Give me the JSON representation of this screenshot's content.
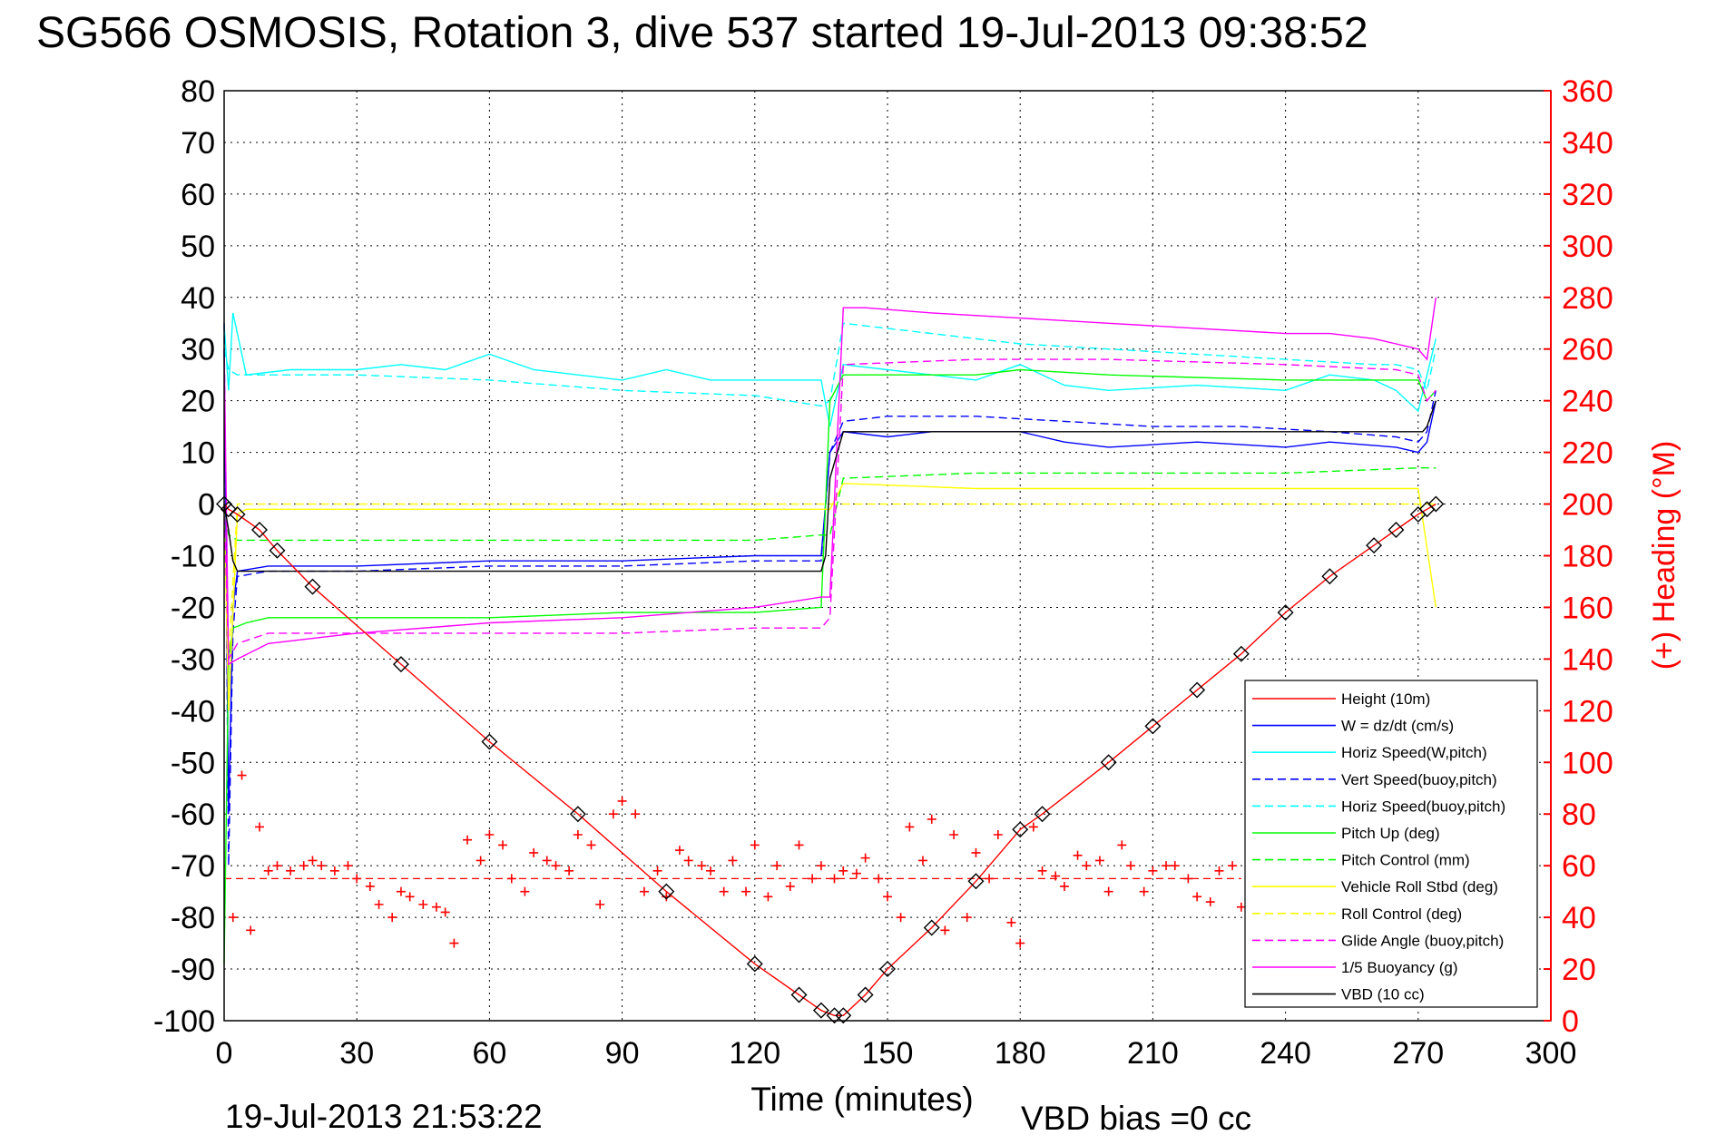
{
  "title": "SG566 OSMOSIS, Rotation 3, dive 537 started 19-Jul-2013 09:38:52",
  "footer": {
    "timestamp": "19-Jul-2013 21:53:22",
    "xlabel": "Time (minutes)",
    "vbd_bias": "VBD bias =0 cc"
  },
  "chart_data": {
    "type": "line",
    "title": "SG566 OSMOSIS, Rotation 3, dive 537 started 19-Jul-2013 09:38:52",
    "xlabel": "Time (minutes)",
    "ylabel": "",
    "y2label": "(+) Heading (°M)",
    "xlim": [
      0,
      300
    ],
    "ylim": [
      -100,
      80
    ],
    "y2lim": [
      0,
      360
    ],
    "xticks": [
      "0",
      "30",
      "60",
      "90",
      "120",
      "150",
      "180",
      "210",
      "240",
      "270",
      "300"
    ],
    "yticks": [
      "80",
      "70",
      "60",
      "50",
      "40",
      "30",
      "20",
      "10",
      "0",
      "-10",
      "-20",
      "-30",
      "-40",
      "-50",
      "-60",
      "-70",
      "-80",
      "-90",
      "-100"
    ],
    "y2ticks": [
      "360",
      "340",
      "320",
      "300",
      "280",
      "260",
      "240",
      "220",
      "200",
      "180",
      "160",
      "140",
      "120",
      "100",
      "80",
      "60",
      "40",
      "20",
      "0"
    ],
    "grid": true,
    "legend_position": "bottom-right",
    "series": [
      {
        "name": "Height (10m)",
        "color": "#ff0000",
        "style": "solid",
        "marker": "diamond",
        "x": [
          0,
          1,
          3,
          8,
          12,
          20,
          40,
          60,
          80,
          100,
          120,
          130,
          135,
          138,
          140,
          145,
          150,
          160,
          170,
          180,
          185,
          200,
          210,
          220,
          230,
          240,
          250,
          260,
          265,
          270,
          272,
          274
        ],
        "y": [
          0,
          -1,
          -2,
          -5,
          -9,
          -16,
          -31,
          -46,
          -60,
          -75,
          -89,
          -95,
          -98,
          -99,
          -99,
          -95,
          -90,
          -82,
          -73,
          -63,
          -60,
          -50,
          -43,
          -36,
          -29,
          -21,
          -14,
          -8,
          -5,
          -2,
          -1,
          0
        ]
      },
      {
        "name": "W = dz/dt (cm/s)",
        "color": "#0000ff",
        "style": "solid",
        "x": [
          0,
          1,
          2,
          3,
          10,
          30,
          60,
          90,
          120,
          135,
          137,
          140,
          150,
          160,
          180,
          190,
          200,
          220,
          240,
          250,
          265,
          270,
          272,
          274
        ],
        "y": [
          30,
          -60,
          -20,
          -13,
          -12,
          -12,
          -11,
          -11,
          -10,
          -10,
          10,
          14,
          13,
          14,
          14,
          12,
          11,
          12,
          11,
          12,
          11,
          10,
          12,
          20
        ]
      },
      {
        "name": "Horiz Speed(W,pitch)",
        "color": "#00ffff",
        "style": "solid",
        "x": [
          0,
          1,
          2,
          5,
          15,
          30,
          40,
          50,
          60,
          70,
          80,
          90,
          100,
          110,
          120,
          135,
          137,
          140,
          150,
          160,
          170,
          180,
          190,
          200,
          220,
          240,
          250,
          260,
          265,
          270,
          274
        ],
        "y": [
          35,
          22,
          37,
          25,
          26,
          26,
          27,
          26,
          29,
          26,
          25,
          24,
          26,
          24,
          24,
          24,
          15,
          27,
          26,
          25,
          24,
          27,
          23,
          22,
          23,
          22,
          25,
          24,
          22,
          18,
          32
        ]
      },
      {
        "name": "Vert Speed(buoy,pitch)",
        "color": "#0000ff",
        "style": "dashed",
        "x": [
          0,
          1,
          2,
          3,
          10,
          30,
          60,
          90,
          120,
          135,
          137,
          140,
          150,
          170,
          190,
          210,
          230,
          250,
          265,
          270,
          272,
          274
        ],
        "y": [
          35,
          -70,
          -25,
          -14,
          -13,
          -13,
          -12,
          -12,
          -11,
          -11,
          10,
          16,
          17,
          17,
          16,
          15,
          15,
          14,
          13,
          12,
          14,
          22
        ]
      },
      {
        "name": "Horiz Speed(buoy,pitch)",
        "color": "#00ffff",
        "style": "dashed",
        "x": [
          0,
          1,
          3,
          10,
          30,
          60,
          90,
          120,
          135,
          137,
          140,
          160,
          180,
          200,
          220,
          240,
          260,
          265,
          270,
          272,
          274
        ],
        "y": [
          30,
          26,
          25,
          25,
          25,
          24,
          22,
          21,
          19,
          20,
          35,
          33,
          31,
          30,
          29,
          28,
          27,
          27,
          26,
          22,
          30
        ]
      },
      {
        "name": "Pitch Up (deg)",
        "color": "#00ff00",
        "style": "solid",
        "x": [
          0,
          1,
          2,
          5,
          10,
          30,
          60,
          90,
          120,
          135,
          137,
          140,
          150,
          170,
          180,
          200,
          240,
          260,
          270,
          272,
          274
        ],
        "y": [
          -89,
          -30,
          -24,
          -23,
          -22,
          -22,
          -22,
          -21,
          -21,
          -20,
          20,
          25,
          25,
          25,
          26,
          25,
          24,
          24,
          24,
          20,
          22
        ]
      },
      {
        "name": "Pitch Control (mm)",
        "color": "#00ff00",
        "style": "dashed",
        "x": [
          0,
          1,
          3,
          10,
          30,
          60,
          90,
          120,
          135,
          137,
          140,
          170,
          200,
          240,
          270,
          274
        ],
        "y": [
          0,
          -6,
          -7,
          -7,
          -7,
          -7,
          -7,
          -7,
          -6,
          -6,
          5,
          6,
          6,
          6,
          7,
          7
        ]
      },
      {
        "name": "Vehicle Roll Stbd (deg)",
        "color": "#ffff00",
        "style": "solid",
        "x": [
          0,
          1,
          3,
          5,
          30,
          60,
          90,
          120,
          135,
          137,
          140,
          170,
          200,
          240,
          270,
          274
        ],
        "y": [
          0,
          -40,
          -2,
          -1,
          -1,
          -1,
          -1,
          -1,
          -1,
          -1,
          4,
          3,
          3,
          3,
          3,
          -20
        ]
      },
      {
        "name": "Roll Control (deg)",
        "color": "#ffff00",
        "style": "dashed",
        "x": [
          0,
          1,
          3,
          5,
          30,
          60,
          90,
          120,
          135,
          137,
          140,
          170,
          200,
          240,
          270,
          274
        ],
        "y": [
          0,
          -30,
          0,
          0,
          0,
          0,
          0,
          0,
          0,
          0,
          0,
          0,
          0,
          0,
          0,
          0
        ]
      },
      {
        "name": "Glide Angle (buoy,pitch)",
        "color": "#ff00ff",
        "style": "dashed",
        "x": [
          0,
          1,
          3,
          10,
          30,
          60,
          90,
          120,
          135,
          137,
          140,
          170,
          200,
          240,
          265,
          270,
          272,
          274
        ],
        "y": [
          0,
          -30,
          -27,
          -25,
          -25,
          -25,
          -25,
          -24,
          -24,
          -22,
          27,
          28,
          28,
          27,
          26,
          25,
          20,
          22
        ]
      },
      {
        "name": "1/5 Buoyancy (g)",
        "color": "#ff00ff",
        "style": "solid",
        "x": [
          0,
          1,
          3,
          10,
          30,
          60,
          90,
          120,
          135,
          137,
          140,
          145,
          160,
          180,
          200,
          220,
          240,
          250,
          260,
          265,
          270,
          272,
          274
        ],
        "y": [
          30,
          -31,
          -30,
          -27,
          -25,
          -23,
          -22,
          -20,
          -18,
          -18,
          38,
          38,
          37,
          36,
          35,
          34,
          33,
          33,
          32,
          31,
          30,
          28,
          40
        ]
      },
      {
        "name": "VBD (10 cc)",
        "color": "#000000",
        "style": "solid",
        "x": [
          0,
          1,
          2,
          3,
          10,
          30,
          60,
          90,
          120,
          135,
          136,
          137,
          140,
          180,
          220,
          260,
          270,
          271,
          272,
          274
        ],
        "y": [
          0,
          -5,
          -11,
          -13,
          -13,
          -13,
          -13,
          -13,
          -13,
          -13,
          -10,
          5,
          14,
          14,
          14,
          14,
          14,
          14,
          15,
          20
        ]
      }
    ],
    "heading": {
      "name": "(+) Heading (°M)",
      "color": "#ff0000",
      "marker": "plus",
      "mean": 55,
      "x": [
        2,
        4,
        6,
        8,
        10,
        12,
        15,
        18,
        20,
        22,
        25,
        28,
        30,
        33,
        35,
        38,
        40,
        42,
        45,
        48,
        50,
        52,
        55,
        58,
        60,
        63,
        65,
        68,
        70,
        73,
        75,
        78,
        80,
        83,
        85,
        88,
        90,
        93,
        95,
        98,
        100,
        103,
        105,
        108,
        110,
        113,
        115,
        118,
        120,
        123,
        125,
        128,
        130,
        133,
        135,
        138,
        140,
        143,
        145,
        148,
        150,
        153,
        155,
        158,
        160,
        163,
        165,
        168,
        170,
        173,
        175,
        178,
        180,
        183,
        185,
        188,
        190,
        193,
        195,
        198,
        200,
        203,
        205,
        208,
        210,
        213,
        215,
        218,
        220,
        223,
        225,
        228,
        230
      ],
      "y": [
        40,
        95,
        35,
        75,
        58,
        60,
        58,
        60,
        62,
        60,
        58,
        60,
        55,
        52,
        45,
        40,
        50,
        48,
        45,
        44,
        42,
        30,
        70,
        62,
        72,
        68,
        55,
        50,
        65,
        62,
        60,
        58,
        72,
        68,
        45,
        80,
        85,
        80,
        50,
        58,
        48,
        66,
        62,
        60,
        58,
        50,
        62,
        50,
        68,
        48,
        60,
        52,
        68,
        55,
        60,
        55,
        58,
        57,
        63,
        55,
        48,
        40,
        75,
        62,
        78,
        35,
        72,
        40,
        65,
        55,
        72,
        38,
        30,
        75,
        58,
        56,
        52,
        64,
        60,
        62,
        50,
        68,
        60,
        50,
        58,
        60,
        60,
        55,
        48,
        46,
        58,
        60,
        44
      ]
    }
  }
}
